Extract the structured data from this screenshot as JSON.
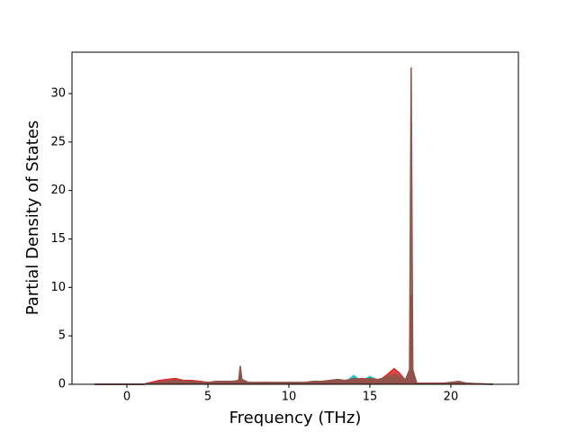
{
  "chart_data": {
    "type": "line",
    "xlabel": "Frequency (THz)",
    "ylabel": "Partial Density of States",
    "x": [
      -2,
      1,
      1.5,
      2,
      2.5,
      3,
      3.5,
      4,
      4.5,
      5,
      5.5,
      6,
      6.5,
      6.9,
      7.0,
      7.1,
      7.5,
      8,
      8.5,
      9,
      9.5,
      10,
      10.5,
      11,
      11.5,
      12,
      12.5,
      13,
      13.5,
      14,
      14.5,
      15,
      15.5,
      16,
      16.5,
      16.8,
      17.2,
      17.45,
      17.55,
      17.65,
      17.9,
      18.5,
      19,
      19.5,
      20,
      20.5,
      21,
      22.6
    ],
    "series": [
      {
        "color": "#17becf",
        "values": [
          0,
          0,
          0.05,
          0.1,
          0.1,
          0.1,
          0.1,
          0.1,
          0.1,
          0.1,
          0.1,
          0.1,
          0.1,
          0.1,
          0.3,
          0.1,
          0.1,
          0.1,
          0.1,
          0.1,
          0.1,
          0.1,
          0.1,
          0.1,
          0.1,
          0.1,
          0.2,
          0.3,
          0.2,
          0.9,
          0.3,
          0.8,
          0.4,
          0.5,
          0.6,
          0.5,
          0.3,
          0.5,
          3.5,
          0.5,
          0.05,
          0.05,
          0.05,
          0.05,
          0.1,
          0.2,
          0.05,
          0
        ]
      },
      {
        "color": "#d62728",
        "values": [
          0,
          0,
          0.2,
          0.4,
          0.5,
          0.6,
          0.4,
          0.4,
          0.3,
          0.2,
          0.2,
          0.2,
          0.2,
          0.3,
          0.8,
          0.3,
          0.1,
          0.1,
          0.2,
          0.1,
          0.1,
          0.2,
          0.1,
          0.1,
          0.2,
          0.2,
          0.3,
          0.4,
          0.3,
          0.5,
          0.6,
          0.5,
          0.3,
          0.9,
          1.6,
          1.2,
          0.4,
          1.0,
          9.2,
          1.0,
          0.1,
          0.1,
          0.1,
          0.1,
          0.1,
          0.2,
          0.1,
          0
        ]
      },
      {
        "color": "#8c564b",
        "values": [
          0,
          0,
          0.1,
          0.2,
          0.3,
          0.4,
          0.3,
          0.3,
          0.2,
          0.2,
          0.3,
          0.3,
          0.3,
          0.4,
          1.9,
          0.5,
          0.2,
          0.2,
          0.2,
          0.2,
          0.2,
          0.2,
          0.2,
          0.2,
          0.3,
          0.3,
          0.4,
          0.5,
          0.4,
          0.6,
          0.5,
          0.6,
          0.5,
          0.7,
          1.0,
          0.8,
          0.5,
          1.5,
          32.7,
          1.5,
          0.1,
          0.1,
          0.1,
          0.1,
          0.2,
          0.3,
          0.1,
          0
        ]
      }
    ],
    "xlim": [
      -3.39,
      24.17
    ],
    "ylim": [
      0,
      34.27
    ],
    "xticks": [
      0,
      5,
      10,
      15,
      20
    ],
    "yticks": [
      0,
      5,
      10,
      15,
      20,
      25,
      30
    ]
  }
}
